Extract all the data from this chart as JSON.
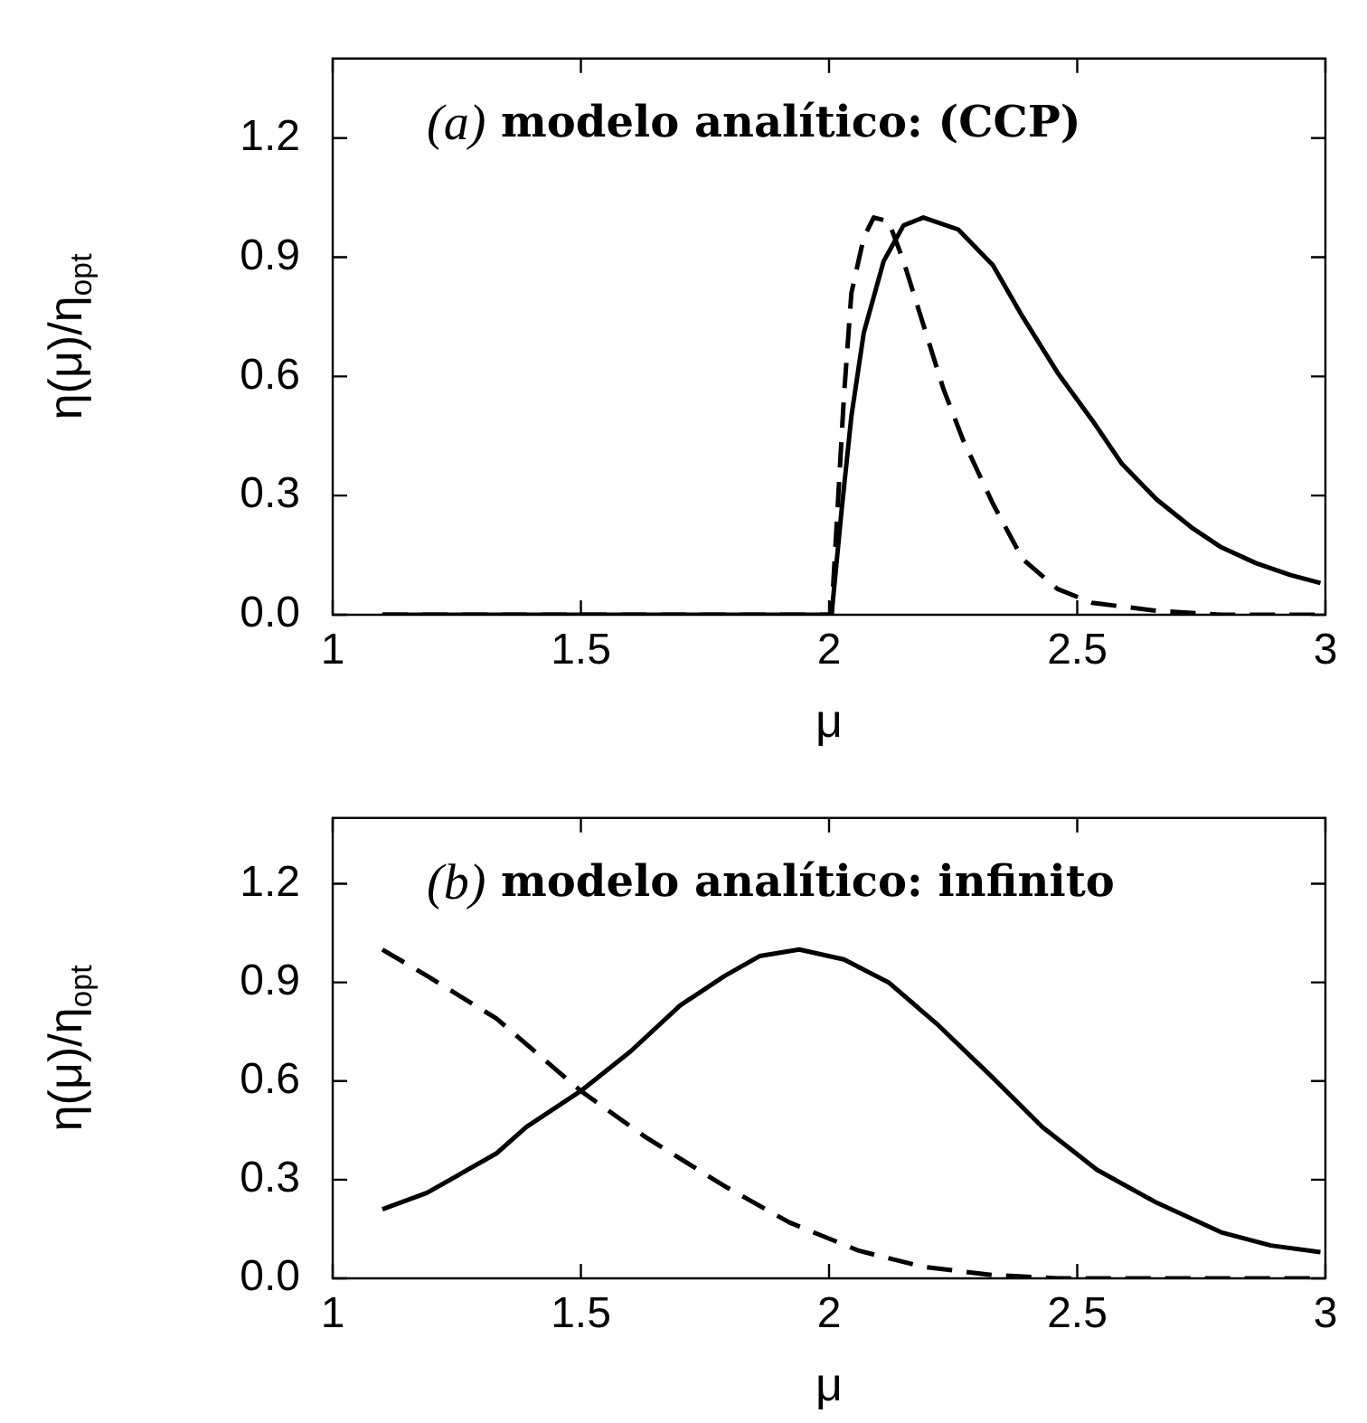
{
  "chart_data": [
    {
      "type": "line",
      "xlabel": "μ",
      "ylabel": "η(μ)/η$_{opt}$",
      "annotations": [
        "(a) modelo analítico: (CCP)"
      ],
      "xlim": [
        1,
        3
      ],
      "ylim": [
        0,
        1.4
      ],
      "xticks": [
        1,
        1.5,
        2,
        2.5,
        3
      ],
      "yticks": [
        {
          "value": 0,
          "label": "0.0"
        },
        0.3,
        0.6,
        0.9,
        1.2
      ],
      "grid": false,
      "legend": false,
      "marker": "none",
      "series": [
        {
          "color": "#000000",
          "line_style": "solid",
          "x": [
            1.1,
            1.5,
            2.0,
            2.005,
            2.025,
            2.045,
            2.07,
            2.11,
            2.15,
            2.19,
            2.26,
            2.33,
            2.39,
            2.46,
            2.53,
            2.59,
            2.66,
            2.73,
            2.79,
            2.86,
            2.93,
            2.99
          ],
          "values": [
            0,
            0,
            0,
            0,
            0.26,
            0.5,
            0.71,
            0.89,
            0.98,
            1.0,
            0.97,
            0.88,
            0.75,
            0.61,
            0.49,
            0.38,
            0.29,
            0.22,
            0.17,
            0.13,
            0.1,
            0.08
          ]
        },
        {
          "color": "#000000",
          "line_style": "dashed",
          "x": [
            1.1,
            1.5,
            2.0,
            2.005,
            2.015,
            2.03,
            2.045,
            2.07,
            2.09,
            2.12,
            2.15,
            2.19,
            2.23,
            2.27,
            2.33,
            2.39,
            2.46,
            2.53,
            2.66,
            2.79,
            2.98
          ],
          "values": [
            0,
            0,
            0,
            0,
            0.22,
            0.55,
            0.81,
            0.95,
            1.0,
            0.99,
            0.89,
            0.73,
            0.57,
            0.44,
            0.28,
            0.14,
            0.065,
            0.03,
            0.01,
            0,
            0
          ]
        }
      ]
    },
    {
      "type": "line",
      "xlabel": "μ",
      "ylabel": "η(μ)/η$_{opt}$",
      "annotations": [
        "(b) modelo analítico: infinito"
      ],
      "xlim": [
        1,
        3
      ],
      "ylim": [
        0,
        1.4
      ],
      "xticks": [
        1,
        1.5,
        2,
        2.5,
        3
      ],
      "yticks": [
        {
          "value": 0,
          "label": "0.0"
        },
        0.3,
        0.6,
        0.9,
        1.2
      ],
      "grid": false,
      "legend": false,
      "marker": "none",
      "series": [
        {
          "color": "#000000",
          "line_style": "solid",
          "x": [
            1.1,
            1.19,
            1.33,
            1.39,
            1.5,
            1.6,
            1.7,
            1.79,
            1.86,
            1.94,
            2.03,
            2.12,
            2.22,
            2.33,
            2.43,
            2.54,
            2.66,
            2.79,
            2.89,
            2.99
          ],
          "values": [
            0.21,
            0.26,
            0.38,
            0.46,
            0.57,
            0.69,
            0.83,
            0.92,
            0.98,
            1.0,
            0.97,
            0.9,
            0.77,
            0.61,
            0.46,
            0.33,
            0.23,
            0.14,
            0.1,
            0.08
          ]
        },
        {
          "color": "#000000",
          "line_style": "dashed",
          "x": [
            1.1,
            1.19,
            1.33,
            1.5,
            1.63,
            1.79,
            1.92,
            2.06,
            2.19,
            2.33,
            2.46,
            2.98
          ],
          "values": [
            1.0,
            0.92,
            0.79,
            0.57,
            0.43,
            0.28,
            0.17,
            0.084,
            0.035,
            0.01,
            0,
            0
          ]
        }
      ]
    }
  ]
}
